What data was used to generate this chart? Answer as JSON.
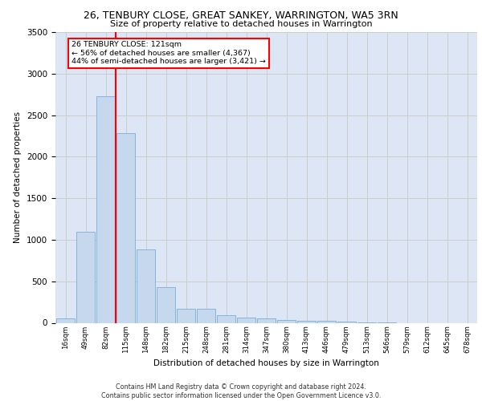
{
  "title_line1": "26, TENBURY CLOSE, GREAT SANKEY, WARRINGTON, WA5 3RN",
  "title_line2": "Size of property relative to detached houses in Warrington",
  "xlabel": "Distribution of detached houses by size in Warrington",
  "ylabel": "Number of detached properties",
  "bar_labels": [
    "16sqm",
    "49sqm",
    "82sqm",
    "115sqm",
    "148sqm",
    "182sqm",
    "215sqm",
    "248sqm",
    "281sqm",
    "314sqm",
    "347sqm",
    "380sqm",
    "413sqm",
    "446sqm",
    "479sqm",
    "513sqm",
    "546sqm",
    "579sqm",
    "612sqm",
    "645sqm",
    "678sqm"
  ],
  "bar_values": [
    55,
    1100,
    2730,
    2280,
    880,
    430,
    170,
    165,
    90,
    60,
    55,
    30,
    25,
    25,
    10,
    5,
    5,
    0,
    0,
    0,
    0
  ],
  "bar_color": "#c5d8ed",
  "bar_edge_color": "#7aaed6",
  "vline_color": "red",
  "vline_index": 2.5,
  "annotation_text": "26 TENBURY CLOSE: 121sqm\n← 56% of detached houses are smaller (4,367)\n44% of semi-detached houses are larger (3,421) →",
  "annotation_box_color": "white",
  "annotation_box_edge": "red",
  "grid_color": "#cccccc",
  "bg_color": "#dce6f5",
  "footer": "Contains HM Land Registry data © Crown copyright and database right 2024.\nContains public sector information licensed under the Open Government Licence v3.0.",
  "ylim": [
    0,
    3500
  ],
  "yticks": [
    0,
    500,
    1000,
    1500,
    2000,
    2500,
    3000,
    3500
  ]
}
